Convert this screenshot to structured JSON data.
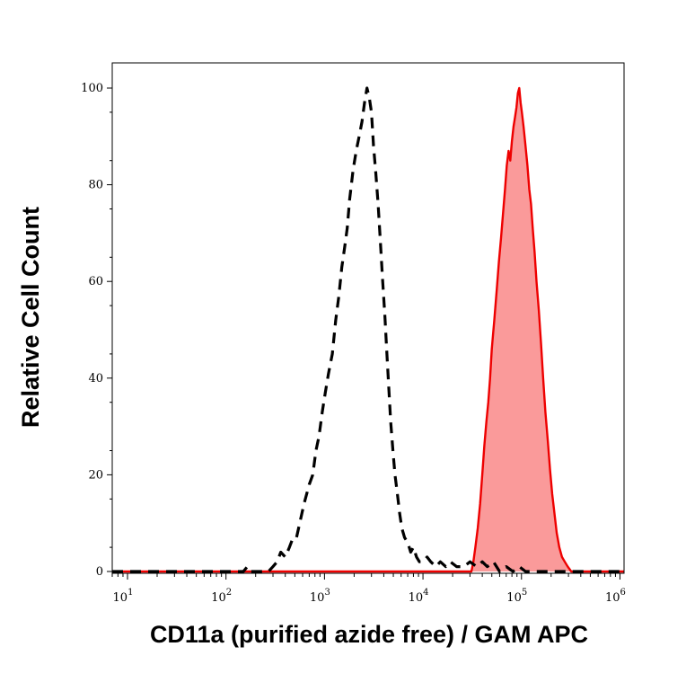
{
  "chart_data": {
    "type": "area",
    "title": "",
    "xlabel": "CD11a (purified azide free) / GAM APC",
    "ylabel": "Relative Cell Count",
    "x_scale": "log",
    "xlim": [
      7,
      1100000
    ],
    "ylim": [
      0,
      100
    ],
    "x_ticks": [
      {
        "base": "10",
        "exp": "1",
        "value": 10
      },
      {
        "base": "10",
        "exp": "2",
        "value": 100
      },
      {
        "base": "10",
        "exp": "3",
        "value": 1000
      },
      {
        "base": "10",
        "exp": "4",
        "value": 10000
      },
      {
        "base": "10",
        "exp": "5",
        "value": 100000
      },
      {
        "base": "10",
        "exp": "6",
        "value": 1000000
      }
    ],
    "y_ticks": [
      {
        "label": "0",
        "value": 0
      },
      {
        "label": "20",
        "value": 20
      },
      {
        "label": "40",
        "value": 40
      },
      {
        "label": "60",
        "value": 60
      },
      {
        "label": "80",
        "value": 80
      },
      {
        "label": "100",
        "value": 100
      }
    ],
    "grid": false,
    "legend": "none",
    "series": [
      {
        "style": "dashed",
        "color": "#000000",
        "fill": "none",
        "points": [
          [
            7,
            0
          ],
          [
            150,
            0
          ],
          [
            165,
            1
          ],
          [
            180,
            0
          ],
          [
            270,
            0
          ],
          [
            300,
            1
          ],
          [
            330,
            2
          ],
          [
            360,
            4
          ],
          [
            400,
            3
          ],
          [
            440,
            5
          ],
          [
            480,
            7
          ],
          [
            520,
            7
          ],
          [
            560,
            10
          ],
          [
            620,
            14
          ],
          [
            700,
            18
          ],
          [
            760,
            20
          ],
          [
            820,
            25
          ],
          [
            880,
            28
          ],
          [
            950,
            33
          ],
          [
            1020,
            37
          ],
          [
            1100,
            41
          ],
          [
            1200,
            45
          ],
          [
            1300,
            52
          ],
          [
            1400,
            57
          ],
          [
            1500,
            63
          ],
          [
            1600,
            67
          ],
          [
            1700,
            71
          ],
          [
            1800,
            77
          ],
          [
            1950,
            83
          ],
          [
            2100,
            87
          ],
          [
            2250,
            90
          ],
          [
            2400,
            93
          ],
          [
            2550,
            97
          ],
          [
            2700,
            100
          ],
          [
            2850,
            98
          ],
          [
            3000,
            95
          ],
          [
            3150,
            88
          ],
          [
            3300,
            83
          ],
          [
            3500,
            76
          ],
          [
            3700,
            68
          ],
          [
            3900,
            60
          ],
          [
            4100,
            53
          ],
          [
            4300,
            45
          ],
          [
            4500,
            38
          ],
          [
            4700,
            31
          ],
          [
            4950,
            25
          ],
          [
            5200,
            20
          ],
          [
            5500,
            16
          ],
          [
            5800,
            12
          ],
          [
            6100,
            9
          ],
          [
            6500,
            7
          ],
          [
            7000,
            6
          ],
          [
            7500,
            4
          ],
          [
            8000,
            5
          ],
          [
            8600,
            3
          ],
          [
            9200,
            2
          ],
          [
            10000,
            2
          ],
          [
            11000,
            3
          ],
          [
            12000,
            2
          ],
          [
            13500,
            1
          ],
          [
            15000,
            2
          ],
          [
            17000,
            1
          ],
          [
            19000,
            2
          ],
          [
            22000,
            1
          ],
          [
            26000,
            1
          ],
          [
            30000,
            2
          ],
          [
            35000,
            1
          ],
          [
            40000,
            2
          ],
          [
            45000,
            1
          ],
          [
            52000,
            2
          ],
          [
            60000,
            0
          ],
          [
            70000,
            1
          ],
          [
            82000,
            0
          ],
          [
            95000,
            1
          ],
          [
            110000,
            0
          ],
          [
            200000,
            0
          ],
          [
            1100000,
            0
          ]
        ]
      },
      {
        "style": "solid",
        "color": "#ee0000",
        "fill": "#fa9a9a",
        "points": [
          [
            7,
            0
          ],
          [
            31000,
            0
          ],
          [
            32500,
            2
          ],
          [
            34000,
            5
          ],
          [
            36000,
            9
          ],
          [
            38000,
            14
          ],
          [
            40000,
            20
          ],
          [
            42000,
            26
          ],
          [
            44000,
            31
          ],
          [
            46000,
            35
          ],
          [
            48000,
            40
          ],
          [
            50000,
            46
          ],
          [
            53000,
            52
          ],
          [
            56000,
            58
          ],
          [
            59000,
            64
          ],
          [
            62000,
            69
          ],
          [
            65000,
            74
          ],
          [
            68000,
            79
          ],
          [
            71000,
            84
          ],
          [
            74000,
            87
          ],
          [
            77000,
            85
          ],
          [
            80000,
            89
          ],
          [
            83000,
            92
          ],
          [
            86000,
            94
          ],
          [
            89000,
            96
          ],
          [
            92000,
            99
          ],
          [
            95000,
            100
          ],
          [
            98000,
            97
          ],
          [
            101000,
            95
          ],
          [
            105000,
            92
          ],
          [
            110000,
            88
          ],
          [
            115000,
            84
          ],
          [
            120000,
            79
          ],
          [
            125000,
            76
          ],
          [
            130000,
            71
          ],
          [
            136000,
            66
          ],
          [
            142000,
            60
          ],
          [
            150000,
            54
          ],
          [
            158000,
            47
          ],
          [
            166000,
            40
          ],
          [
            175000,
            33
          ],
          [
            185000,
            27
          ],
          [
            195000,
            21
          ],
          [
            205000,
            16
          ],
          [
            216000,
            12
          ],
          [
            228000,
            8
          ],
          [
            242000,
            5
          ],
          [
            258000,
            3
          ],
          [
            275000,
            2
          ],
          [
            295000,
            1
          ],
          [
            320000,
            0
          ],
          [
            1100000,
            0
          ]
        ]
      }
    ]
  }
}
